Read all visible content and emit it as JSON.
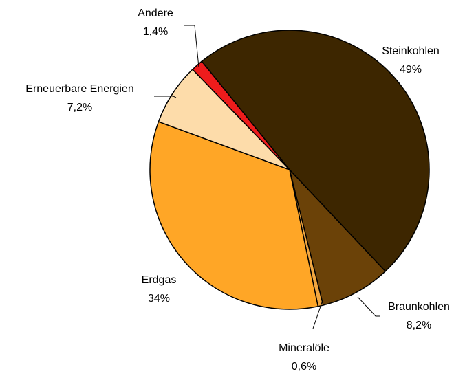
{
  "chart_data": {
    "type": "pie",
    "categories": [
      "Steinkohlen",
      "Braunkohlen",
      "Mineralöle",
      "Erdgas",
      "Erneuerbare Energien",
      "Andere"
    ],
    "values": [
      49,
      8.2,
      0.6,
      34,
      7.2,
      1.4
    ],
    "value_labels": [
      "49%",
      "8,2%",
      "0,6%",
      "34%",
      "7,2%",
      "1,4%"
    ],
    "colors": [
      "#3d2600",
      "#6b4208",
      "#f0a640",
      "#ffa626",
      "#fddcaa",
      "#ee1c1c"
    ]
  }
}
